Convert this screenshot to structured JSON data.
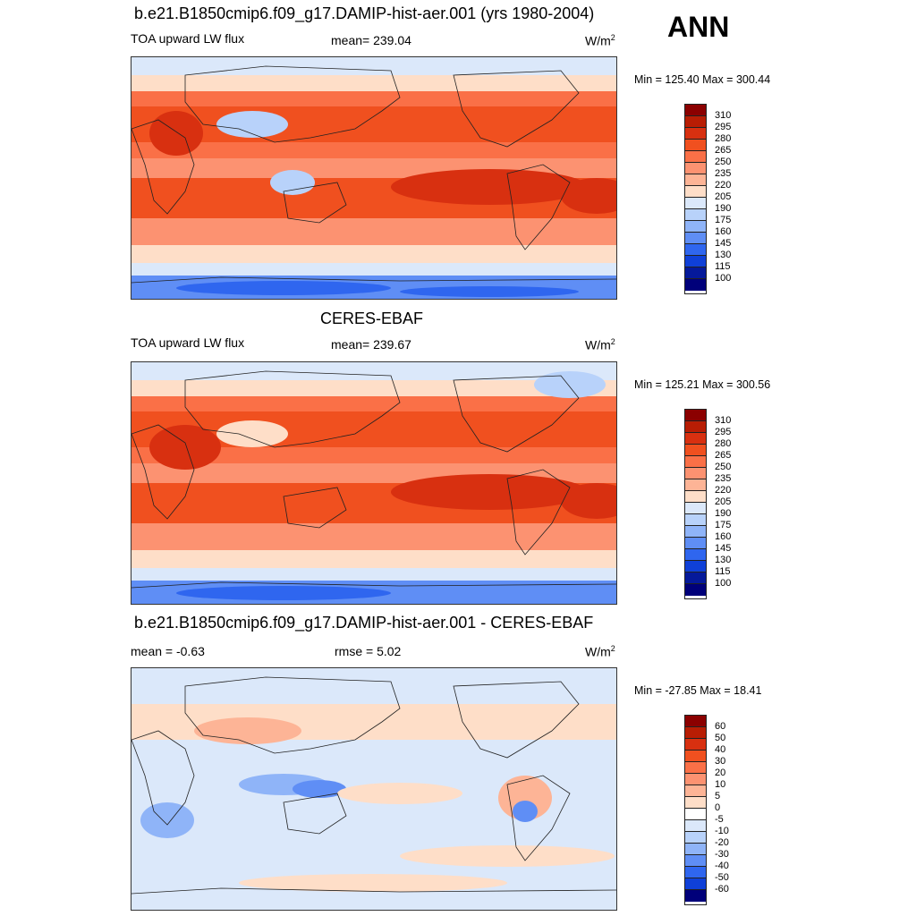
{
  "season_label": "ANN",
  "units_base": "W/m",
  "units_exp": "2",
  "panels": [
    {
      "title": "b.e21.B1850cmip6.f09_g17.DAMIP-hist-aer.001 (yrs 1980-2004)",
      "left": "TOA upward LW flux",
      "center": "mean= 239.04",
      "minmax": "Min = 125.40 Max = 300.44",
      "colorbar_labels": [
        "310",
        "295",
        "280",
        "265",
        "250",
        "235",
        "220",
        "205",
        "190",
        "175",
        "160",
        "145",
        "130",
        "115",
        "100"
      ],
      "colorbar_colors": [
        "#8b0000",
        "#b81d04",
        "#d83010",
        "#f0501f",
        "#fa7047",
        "#fc9271",
        "#fdb496",
        "#fedec8",
        "#dbe8fa",
        "#b8d2fa",
        "#8fb4f8",
        "#5f8ef5",
        "#2f66ef",
        "#0f40d8",
        "#05199a",
        "#00007a"
      ]
    },
    {
      "title": "CERES-EBAF",
      "left": "TOA upward LW flux",
      "center": "mean= 239.67",
      "minmax": "Min = 125.21 Max = 300.56",
      "colorbar_labels": [
        "310",
        "295",
        "280",
        "265",
        "250",
        "235",
        "220",
        "205",
        "190",
        "175",
        "160",
        "145",
        "130",
        "115",
        "100"
      ],
      "colorbar_colors": [
        "#8b0000",
        "#b81d04",
        "#d83010",
        "#f0501f",
        "#fa7047",
        "#fc9271",
        "#fdb496",
        "#fedec8",
        "#dbe8fa",
        "#b8d2fa",
        "#8fb4f8",
        "#5f8ef5",
        "#2f66ef",
        "#0f40d8",
        "#05199a",
        "#00007a"
      ]
    },
    {
      "title": "b.e21.B1850cmip6.f09_g17.DAMIP-hist-aer.001 - CERES-EBAF",
      "left": "mean =  -0.63",
      "center": "rmse =   5.02",
      "minmax": "Min = -27.85 Max =  18.41",
      "colorbar_labels": [
        "60",
        "50",
        "40",
        "30",
        "20",
        "10",
        "5",
        "0",
        "-5",
        "-10",
        "-20",
        "-30",
        "-40",
        "-50",
        "-60"
      ],
      "colorbar_colors": [
        "#8b0000",
        "#b81d04",
        "#d83010",
        "#f0501f",
        "#fa7047",
        "#fc9271",
        "#fdb496",
        "#fedec8",
        "#ffffff",
        "#dbe8fa",
        "#b8d2fa",
        "#8fb4f8",
        "#5f8ef5",
        "#2f66ef",
        "#0f40d8",
        "#00007a"
      ]
    }
  ]
}
